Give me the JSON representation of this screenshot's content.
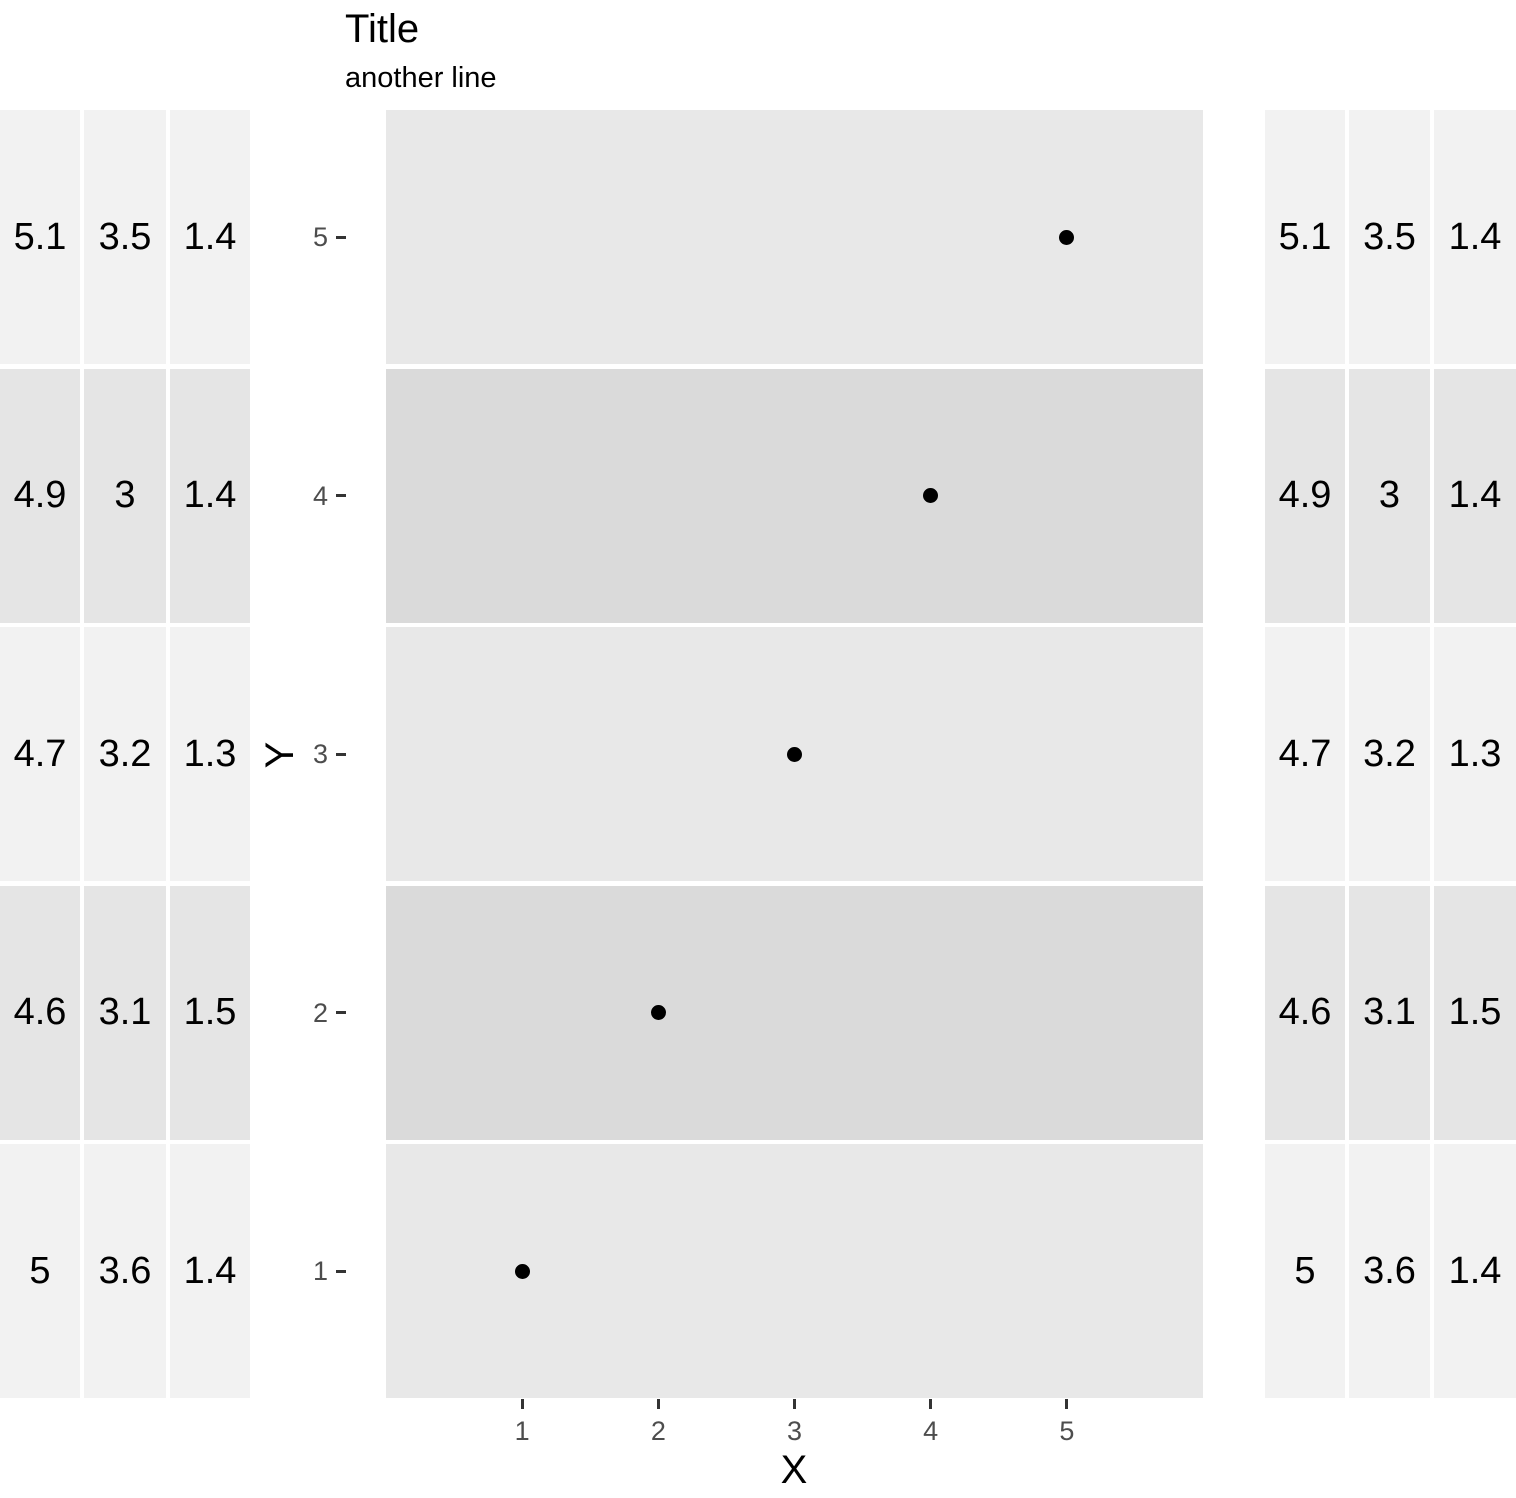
{
  "title": "Title",
  "subtitle": "another line",
  "y_axis": {
    "label": "Y",
    "ticks": [
      "5",
      "4",
      "3",
      "2",
      "1"
    ]
  },
  "x_axis": {
    "label": "X",
    "ticks": [
      "1",
      "2",
      "3",
      "4",
      "5"
    ]
  },
  "left_table": {
    "rows": [
      [
        "5.1",
        "3.5",
        "1.4"
      ],
      [
        "4.9",
        "3",
        "1.4"
      ],
      [
        "4.7",
        "3.2",
        "1.3"
      ],
      [
        "4.6",
        "3.1",
        "1.5"
      ],
      [
        "5",
        "3.6",
        "1.4"
      ]
    ]
  },
  "right_table": {
    "rows": [
      [
        "5.1",
        "3.5",
        "1.4"
      ],
      [
        "4.9",
        "3",
        "1.4"
      ],
      [
        "4.7",
        "3.2",
        "1.3"
      ],
      [
        "4.6",
        "3.1",
        "1.5"
      ],
      [
        "5",
        "3.6",
        "1.4"
      ]
    ]
  },
  "colors": {
    "panel_band_light": "#E8E8E8",
    "panel_band_dark": "#DADADA",
    "table_band_light": "#F2F2F2",
    "table_band_dark": "#E5E5E5",
    "point": "#000000",
    "tick_text": "#4D4D4D",
    "tick_mark": "#333333",
    "text": "#000000"
  },
  "chart_data": {
    "type": "scatter",
    "title": "Title",
    "subtitle": "another line",
    "xlabel": "X",
    "ylabel": "Y",
    "points": [
      {
        "x": 1,
        "y": 1
      },
      {
        "x": 2,
        "y": 2
      },
      {
        "x": 3,
        "y": 3
      },
      {
        "x": 4,
        "y": 4
      },
      {
        "x": 5,
        "y": 5
      }
    ],
    "x_ticks": [
      1,
      2,
      3,
      4,
      5
    ],
    "y_ticks": [
      1,
      2,
      3,
      4,
      5
    ],
    "xlim": [
      0,
      6
    ],
    "grid": false,
    "legend": false,
    "panel_stripes": "one horizontal band per y value, alternating light/dark, white gaps between bands",
    "side_tables_rows_top_to_bottom": [
      [
        "5.1",
        "3.5",
        "1.4"
      ],
      [
        "4.9",
        "3",
        "1.4"
      ],
      [
        "4.7",
        "3.2",
        "1.3"
      ],
      [
        "4.6",
        "3.1",
        "1.5"
      ],
      [
        "5",
        "3.6",
        "1.4"
      ]
    ]
  }
}
